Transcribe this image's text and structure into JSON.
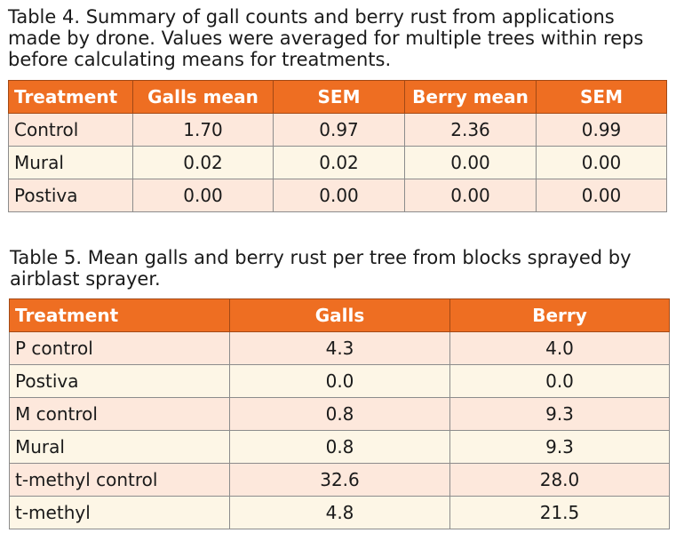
{
  "table4": {
    "caption": "Table 4. Summary of gall counts and berry rust from applications made by drone. Values were averaged for multiple trees within reps before calculating means for treatments.",
    "headers": [
      "Treatment",
      "Galls mean",
      "SEM",
      "Berry mean",
      "SEM"
    ],
    "rows": [
      [
        "Control",
        "1.70",
        "0.97",
        "2.36",
        "0.99"
      ],
      [
        "Mural",
        "0.02",
        "0.02",
        "0.00",
        "0.00"
      ],
      [
        "Postiva",
        "0.00",
        "0.00",
        "0.00",
        "0.00"
      ]
    ]
  },
  "table5": {
    "caption": "Table 5. Mean galls and berry rust per tree from blocks sprayed by airblast sprayer.",
    "headers": [
      "Treatment",
      "Galls",
      "Berry"
    ],
    "rows": [
      [
        "P control",
        "4.3",
        "4.0"
      ],
      [
        "Postiva",
        "0.0",
        "0.0"
      ],
      [
        "M control",
        "0.8",
        "9.3"
      ],
      [
        "Mural",
        "0.8",
        "9.3"
      ],
      [
        "t-methyl control",
        "32.6",
        "28.0"
      ],
      [
        "t-methyl",
        "4.8",
        "21.5"
      ]
    ]
  },
  "colors": {
    "header_bg": "#ee6e22",
    "header_text": "#ffffff",
    "row_odd_bg": "#fde8dc",
    "row_even_bg": "#fdf6e6",
    "grid_line": "#8c8c8c"
  }
}
